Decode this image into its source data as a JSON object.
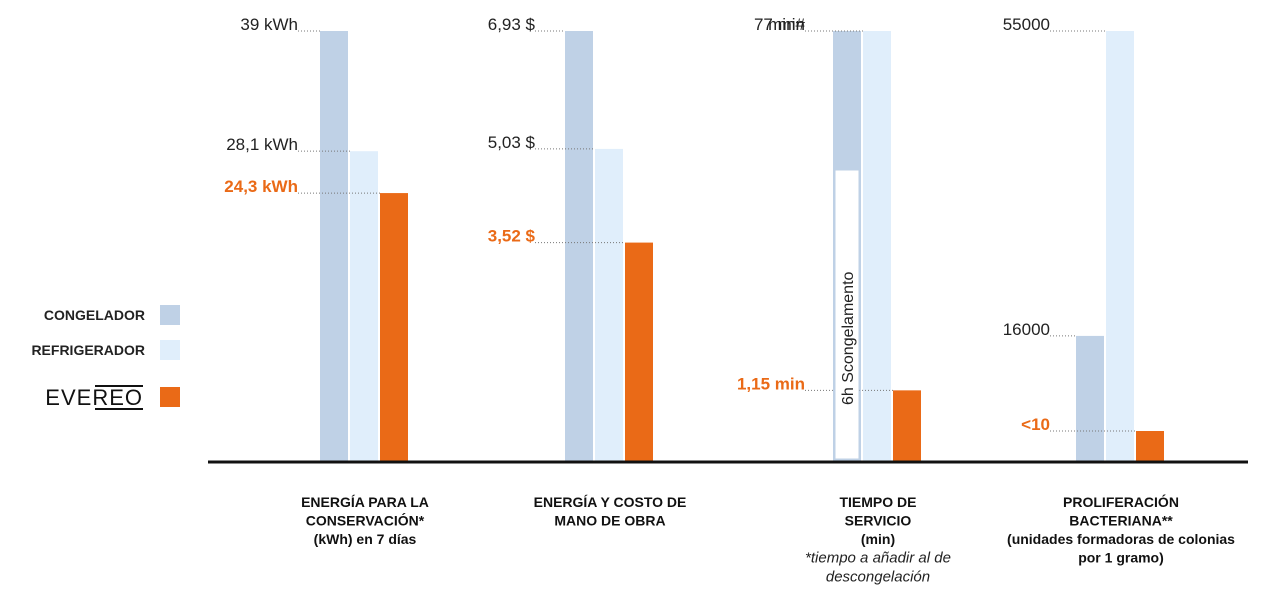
{
  "chart_data": {
    "type": "bar",
    "series": [
      {
        "name": "CONGELADOR",
        "color": "#bfd1e6"
      },
      {
        "name": "REFRIGERADOR",
        "color": "#e0eefb"
      },
      {
        "name": "EVEREO",
        "color": "#ea6a17",
        "legend_logo": true
      }
    ],
    "groups": [
      {
        "category_lines": [
          "ENERGÍA PARA LA",
          "CONSERVACIÓN*",
          "(kWh) en 7 días"
        ],
        "note_lines": [],
        "scale_max": 39,
        "values": [
          39,
          28.1,
          24.3
        ],
        "labels": [
          "39 kWh",
          "28,1 kWh",
          "24,3 kWh"
        ]
      },
      {
        "category_lines": [
          "ENERGÍA Y COSTO DE",
          "MANO DE OBRA"
        ],
        "note_lines": [],
        "scale_max": 6.93,
        "values": [
          6.93,
          5.03,
          3.52
        ],
        "labels": [
          "6,93 $",
          "5,03 $",
          "3,52 $"
        ]
      },
      {
        "category_lines": [
          "TIEMPO DE",
          "SERVICIO",
          "(min)"
        ],
        "note_lines": [
          "*tiempo a añadir al de",
          "descongelación"
        ],
        "scale_max": 7,
        "values": [
          7,
          7,
          1.15
        ],
        "labels": [
          "7 min#",
          "7 min",
          "1,15 min"
        ],
        "inbar_text": "6h Scongelamento"
      },
      {
        "category_lines": [
          "PROLIFERACIÓN",
          "BACTERIANA**",
          "(unidades formadoras de colonias",
          "por 1 gramo)"
        ],
        "note_lines": [],
        "scale_max": 55000,
        "values": [
          16000,
          55000,
          10
        ],
        "labels": [
          "16000",
          "55000",
          "<10"
        ]
      }
    ]
  }
}
